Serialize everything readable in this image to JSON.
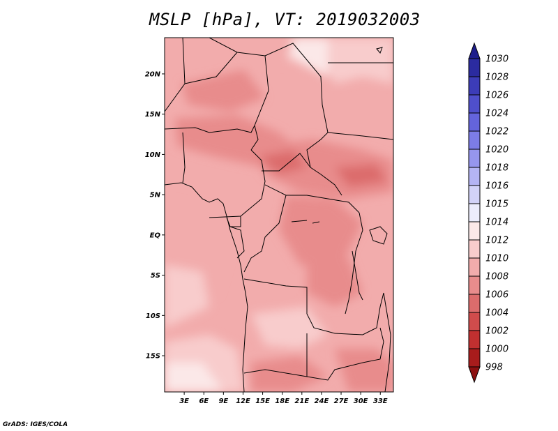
{
  "title": "MSLP [hPa], VT: 2019032003",
  "credit": "GrADS: IGES/COLA",
  "map": {
    "lon_range": [
      0,
      35
    ],
    "lat_range": [
      -19.5,
      24.5
    ],
    "lat_ticks": [
      "20N",
      "15N",
      "10N",
      "5N",
      "EQ",
      "5S",
      "10S",
      "15S"
    ],
    "lat_tick_values": [
      20,
      15,
      10,
      5,
      0,
      -5,
      -10,
      -15
    ],
    "lon_ticks": [
      "3E",
      "6E",
      "9E",
      "12E",
      "15E",
      "18E",
      "21E",
      "24E",
      "27E",
      "30E",
      "33E"
    ],
    "lon_tick_values": [
      3,
      6,
      9,
      12,
      15,
      18,
      21,
      24,
      27,
      30,
      33
    ]
  },
  "colorbar": {
    "levels": [
      "1030",
      "1028",
      "1026",
      "1024",
      "1022",
      "1020",
      "1018",
      "1016",
      "1015",
      "1014",
      "1012",
      "1010",
      "1008",
      "1006",
      "1004",
      "1002",
      "1000",
      "998"
    ],
    "colors": [
      "#1e1e8c",
      "#2b2ba0",
      "#3c3cb8",
      "#4f4fcc",
      "#6464dc",
      "#7c7ce6",
      "#9696ee",
      "#b4b4f4",
      "#d2d2f8",
      "#ececfc",
      "#fbe8e8",
      "#f8cccc",
      "#f2acac",
      "#e88c8c",
      "#dc6c6c",
      "#d04c4c",
      "#c03030",
      "#a81c1c",
      "#8c1010"
    ]
  }
}
